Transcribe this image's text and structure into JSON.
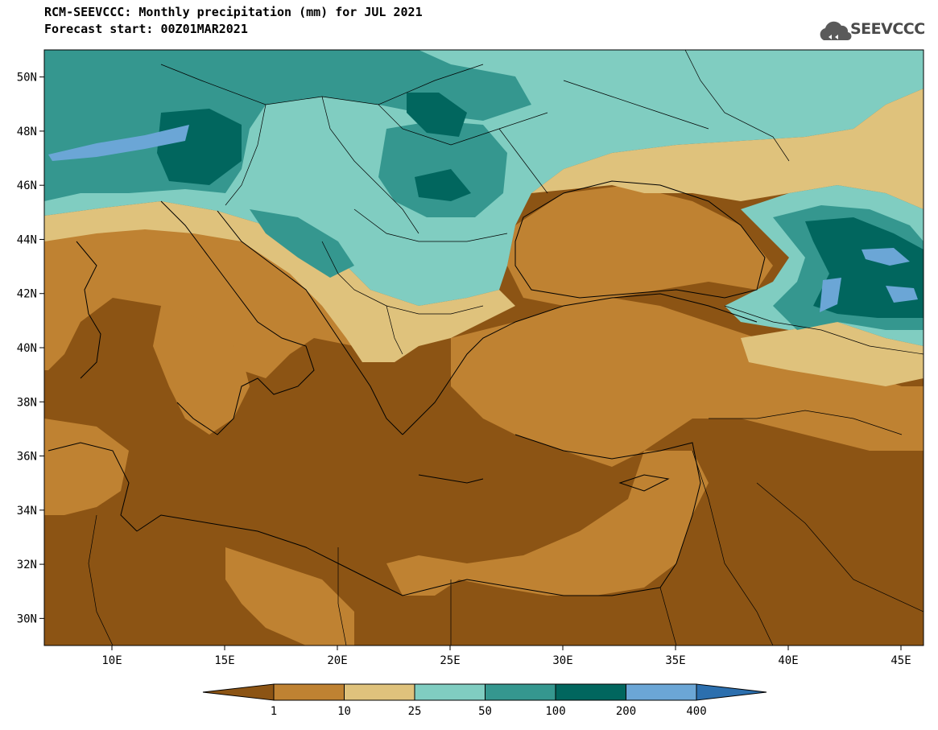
{
  "header": {
    "title_line1": "RCM-SEEVCCC: Monthly precipitation (mm) for JUL 2021",
    "title_line2": "Forecast start: 00Z01MAR2021"
  },
  "logo": {
    "text": "SEEVCCC",
    "icon": "cloud-icon"
  },
  "map": {
    "lon_range": [
      7,
      46
    ],
    "lat_range": [
      29,
      51
    ],
    "lat_ticks": [
      {
        "value": 50,
        "label": "50N"
      },
      {
        "value": 48,
        "label": "48N"
      },
      {
        "value": 46,
        "label": "46N"
      },
      {
        "value": 44,
        "label": "44N"
      },
      {
        "value": 42,
        "label": "42N"
      },
      {
        "value": 40,
        "label": "40N"
      },
      {
        "value": 38,
        "label": "38N"
      },
      {
        "value": 36,
        "label": "36N"
      },
      {
        "value": 34,
        "label": "34N"
      },
      {
        "value": 32,
        "label": "32N"
      },
      {
        "value": 30,
        "label": "30N"
      }
    ],
    "lon_ticks": [
      {
        "value": 10,
        "label": "10E"
      },
      {
        "value": 15,
        "label": "15E"
      },
      {
        "value": 20,
        "label": "20E"
      },
      {
        "value": 25,
        "label": "25E"
      },
      {
        "value": 30,
        "label": "30E"
      },
      {
        "value": 35,
        "label": "35E"
      },
      {
        "value": 40,
        "label": "40E"
      },
      {
        "value": 45,
        "label": "45E"
      }
    ]
  },
  "colorbar": {
    "labels": [
      "1",
      "10",
      "25",
      "50",
      "100",
      "200",
      "400"
    ],
    "colors": [
      "#8c5414",
      "#bf8232",
      "#dfc27c",
      "#80cdc1",
      "#35978f",
      "#01665e",
      "#6ba6d6",
      "#2c6fae"
    ]
  }
}
